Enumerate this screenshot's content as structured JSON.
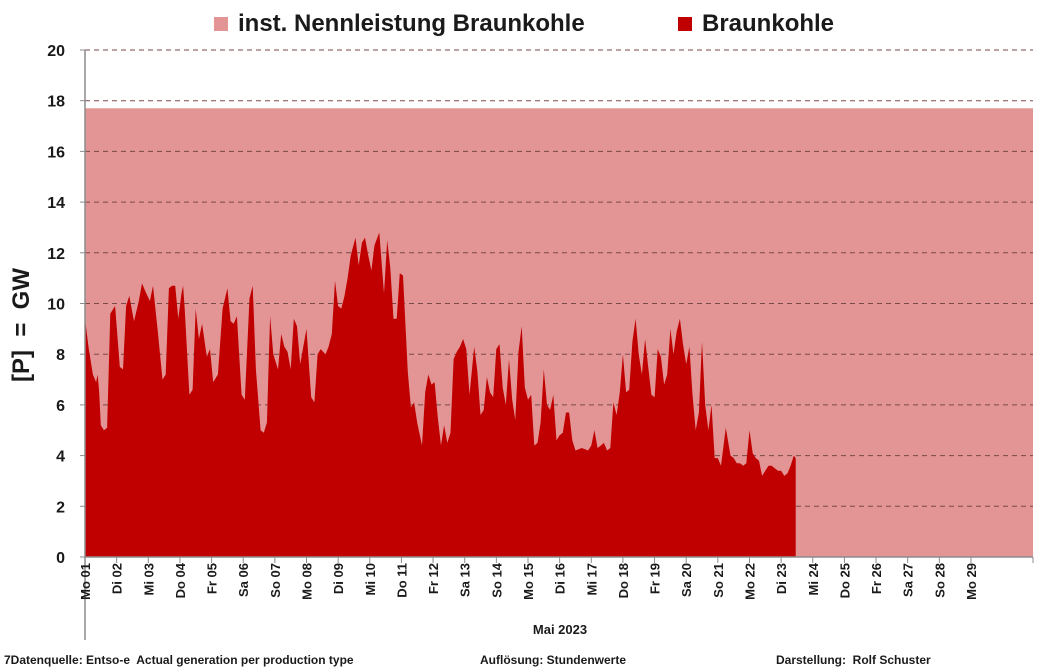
{
  "legend": {
    "capacity_label": "inst. Nennleistung Braunkohle",
    "generation_label": "Braunkohle"
  },
  "y_axis_title": "[P]  =  GW",
  "x_axis_title": "Mai 2023",
  "footer": {
    "source": "7Datenquelle: Entso-e  Actual generation per production type",
    "resolution": "Auflösung: Stundenwerte",
    "author": "Darstellung:  Rolf Schuster"
  },
  "colors": {
    "capacity": "#e39595",
    "generation": "#c00000",
    "grid": "#7a4a4a",
    "axis": "#8c8c8c"
  },
  "chart_data": {
    "type": "area",
    "title": "",
    "xlabel": "Mai 2023",
    "ylabel": "[P]  =  GW",
    "ylim": [
      0,
      20
    ],
    "y_ticks": [
      0,
      2,
      4,
      6,
      8,
      10,
      12,
      14,
      16,
      18,
      20
    ],
    "grid": "horizontal dashed",
    "legend_position": "top",
    "x_unit": "days since 01 May 2023 00:00",
    "xlim": [
      0,
      29.96
    ],
    "categories": [
      "Mo 01",
      "Di 02",
      "Mi 03",
      "Do 04",
      "Fr 05",
      "Sa 06",
      "So 07",
      "Mo 08",
      "Di 09",
      "Mi 10",
      "Do 11",
      "Fr 12",
      "Sa 13",
      "So 14",
      "Mo 15",
      "Di 16",
      "Mi 17",
      "Do 18",
      "Fr 19",
      "Sa 20",
      "So 21",
      "Mo 22",
      "Di 23",
      "Mi 24",
      "Do 25",
      "Fr 26",
      "Sa 27",
      "So 28",
      "Mo 29"
    ],
    "series": [
      {
        "name": "inst. Nennleistung Braunkohle",
        "type": "area",
        "x": [
          0,
          29.96
        ],
        "y": [
          17.7,
          17.7
        ]
      },
      {
        "name": "Braunkohle",
        "type": "area",
        "points": [
          [
            0.0,
            9.4
          ],
          [
            0.12,
            8.2
          ],
          [
            0.25,
            7.2
          ],
          [
            0.35,
            6.9
          ],
          [
            0.4,
            7.2
          ],
          [
            0.45,
            6.5
          ],
          [
            0.5,
            5.2
          ],
          [
            0.6,
            5.0
          ],
          [
            0.7,
            5.1
          ],
          [
            0.8,
            9.6
          ],
          [
            0.95,
            9.9
          ],
          [
            1.1,
            7.5
          ],
          [
            1.2,
            7.4
          ],
          [
            1.3,
            9.9
          ],
          [
            1.4,
            10.3
          ],
          [
            1.55,
            9.3
          ],
          [
            1.7,
            10.1
          ],
          [
            1.8,
            10.8
          ],
          [
            1.9,
            10.5
          ],
          [
            2.05,
            10.1
          ],
          [
            2.15,
            10.7
          ],
          [
            2.3,
            8.9
          ],
          [
            2.45,
            7.0
          ],
          [
            2.55,
            7.2
          ],
          [
            2.65,
            10.6
          ],
          [
            2.75,
            10.7
          ],
          [
            2.85,
            10.7
          ],
          [
            2.95,
            9.4
          ],
          [
            3.05,
            10.4
          ],
          [
            3.1,
            10.7
          ],
          [
            3.15,
            9.8
          ],
          [
            3.3,
            6.4
          ],
          [
            3.4,
            6.6
          ],
          [
            3.5,
            9.8
          ],
          [
            3.6,
            8.6
          ],
          [
            3.7,
            9.2
          ],
          [
            3.85,
            7.9
          ],
          [
            3.95,
            8.2
          ],
          [
            4.05,
            6.9
          ],
          [
            4.2,
            7.2
          ],
          [
            4.35,
            9.8
          ],
          [
            4.5,
            10.6
          ],
          [
            4.6,
            9.3
          ],
          [
            4.7,
            9.2
          ],
          [
            4.8,
            9.5
          ],
          [
            4.95,
            6.4
          ],
          [
            5.05,
            6.2
          ],
          [
            5.2,
            10.2
          ],
          [
            5.3,
            10.7
          ],
          [
            5.4,
            7.4
          ],
          [
            5.55,
            5.0
          ],
          [
            5.65,
            4.9
          ],
          [
            5.75,
            5.3
          ],
          [
            5.85,
            9.5
          ],
          [
            5.95,
            8.0
          ],
          [
            6.1,
            7.4
          ],
          [
            6.2,
            8.8
          ],
          [
            6.3,
            8.3
          ],
          [
            6.4,
            8.1
          ],
          [
            6.5,
            7.4
          ],
          [
            6.6,
            9.4
          ],
          [
            6.7,
            9.1
          ],
          [
            6.8,
            7.6
          ],
          [
            6.9,
            8.3
          ],
          [
            7.0,
            9.0
          ],
          [
            7.15,
            6.3
          ],
          [
            7.25,
            6.1
          ],
          [
            7.35,
            8.0
          ],
          [
            7.45,
            8.2
          ],
          [
            7.6,
            8.0
          ],
          [
            7.7,
            8.3
          ],
          [
            7.8,
            8.8
          ],
          [
            7.9,
            10.9
          ],
          [
            8.0,
            9.9
          ],
          [
            8.1,
            9.8
          ],
          [
            8.2,
            10.3
          ],
          [
            8.3,
            11.0
          ],
          [
            8.4,
            11.9
          ],
          [
            8.55,
            12.6
          ],
          [
            8.65,
            11.5
          ],
          [
            8.75,
            12.4
          ],
          [
            8.85,
            12.6
          ],
          [
            8.95,
            11.9
          ],
          [
            9.05,
            11.3
          ],
          [
            9.15,
            12.3
          ],
          [
            9.3,
            12.8
          ],
          [
            9.45,
            10.4
          ],
          [
            9.55,
            12.5
          ],
          [
            9.65,
            11.4
          ],
          [
            9.75,
            9.4
          ],
          [
            9.85,
            9.4
          ],
          [
            9.95,
            11.2
          ],
          [
            10.05,
            11.1
          ],
          [
            10.2,
            7.3
          ],
          [
            10.3,
            5.9
          ],
          [
            10.4,
            6.1
          ],
          [
            10.5,
            5.3
          ],
          [
            10.65,
            4.4
          ],
          [
            10.75,
            6.5
          ],
          [
            10.85,
            7.2
          ],
          [
            10.95,
            6.8
          ],
          [
            11.05,
            6.9
          ],
          [
            11.15,
            5.5
          ],
          [
            11.25,
            4.4
          ],
          [
            11.35,
            5.2
          ],
          [
            11.45,
            4.5
          ],
          [
            11.55,
            4.9
          ],
          [
            11.65,
            7.8
          ],
          [
            11.75,
            8.1
          ],
          [
            11.85,
            8.3
          ],
          [
            11.95,
            8.6
          ],
          [
            12.05,
            8.2
          ],
          [
            12.15,
            6.4
          ],
          [
            12.3,
            8.3
          ],
          [
            12.4,
            7.3
          ],
          [
            12.5,
            5.6
          ],
          [
            12.6,
            5.8
          ],
          [
            12.7,
            7.1
          ],
          [
            12.8,
            6.5
          ],
          [
            12.9,
            6.3
          ],
          [
            13.0,
            8.2
          ],
          [
            13.1,
            8.4
          ],
          [
            13.2,
            6.7
          ],
          [
            13.3,
            6.0
          ],
          [
            13.4,
            7.8
          ],
          [
            13.5,
            6.2
          ],
          [
            13.6,
            5.4
          ],
          [
            13.7,
            8.1
          ],
          [
            13.8,
            9.1
          ],
          [
            13.9,
            6.7
          ],
          [
            14.0,
            6.2
          ],
          [
            14.1,
            6.4
          ],
          [
            14.2,
            4.4
          ],
          [
            14.3,
            4.5
          ],
          [
            14.4,
            5.3
          ],
          [
            14.5,
            7.4
          ],
          [
            14.6,
            6.0
          ],
          [
            14.7,
            5.8
          ],
          [
            14.8,
            6.4
          ],
          [
            14.9,
            4.6
          ],
          [
            15.0,
            4.8
          ],
          [
            15.1,
            4.9
          ],
          [
            15.2,
            5.7
          ],
          [
            15.3,
            5.7
          ],
          [
            15.4,
            4.6
          ],
          [
            15.5,
            4.2
          ],
          [
            15.7,
            4.3
          ],
          [
            15.9,
            4.2
          ],
          [
            16.0,
            4.4
          ],
          [
            16.1,
            5.0
          ],
          [
            16.2,
            4.3
          ],
          [
            16.3,
            4.4
          ],
          [
            16.4,
            4.5
          ],
          [
            16.5,
            4.2
          ],
          [
            16.6,
            4.3
          ],
          [
            16.7,
            6.1
          ],
          [
            16.8,
            5.6
          ],
          [
            16.9,
            6.5
          ],
          [
            17.0,
            8.0
          ],
          [
            17.1,
            6.5
          ],
          [
            17.2,
            6.6
          ],
          [
            17.3,
            8.5
          ],
          [
            17.4,
            9.4
          ],
          [
            17.5,
            8.0
          ],
          [
            17.6,
            7.2
          ],
          [
            17.7,
            8.6
          ],
          [
            17.8,
            7.5
          ],
          [
            17.9,
            6.4
          ],
          [
            18.0,
            6.3
          ],
          [
            18.1,
            8.2
          ],
          [
            18.2,
            7.9
          ],
          [
            18.3,
            6.8
          ],
          [
            18.4,
            7.2
          ],
          [
            18.5,
            9.0
          ],
          [
            18.6,
            8.0
          ],
          [
            18.7,
            8.9
          ],
          [
            18.8,
            9.4
          ],
          [
            18.9,
            8.4
          ],
          [
            19.0,
            7.6
          ],
          [
            19.1,
            8.3
          ],
          [
            19.2,
            6.4
          ],
          [
            19.3,
            5.0
          ],
          [
            19.4,
            5.7
          ],
          [
            19.5,
            8.5
          ],
          [
            19.6,
            6.0
          ],
          [
            19.7,
            5.0
          ],
          [
            19.8,
            6.0
          ],
          [
            19.9,
            3.9
          ],
          [
            20.0,
            3.9
          ],
          [
            20.1,
            3.6
          ],
          [
            20.25,
            5.1
          ],
          [
            20.4,
            4.0
          ],
          [
            20.5,
            3.9
          ],
          [
            20.6,
            3.7
          ],
          [
            20.7,
            3.7
          ],
          [
            20.8,
            3.6
          ],
          [
            20.9,
            3.7
          ],
          [
            21.0,
            5.0
          ],
          [
            21.1,
            4.1
          ],
          [
            21.2,
            3.9
          ],
          [
            21.3,
            3.8
          ],
          [
            21.4,
            3.2
          ],
          [
            21.5,
            3.4
          ],
          [
            21.6,
            3.6
          ],
          [
            21.7,
            3.6
          ],
          [
            21.8,
            3.5
          ],
          [
            21.9,
            3.4
          ],
          [
            22.0,
            3.4
          ],
          [
            22.1,
            3.2
          ],
          [
            22.2,
            3.3
          ],
          [
            22.3,
            3.6
          ],
          [
            22.4,
            4.0
          ],
          [
            22.46,
            3.9
          ]
        ]
      }
    ]
  }
}
